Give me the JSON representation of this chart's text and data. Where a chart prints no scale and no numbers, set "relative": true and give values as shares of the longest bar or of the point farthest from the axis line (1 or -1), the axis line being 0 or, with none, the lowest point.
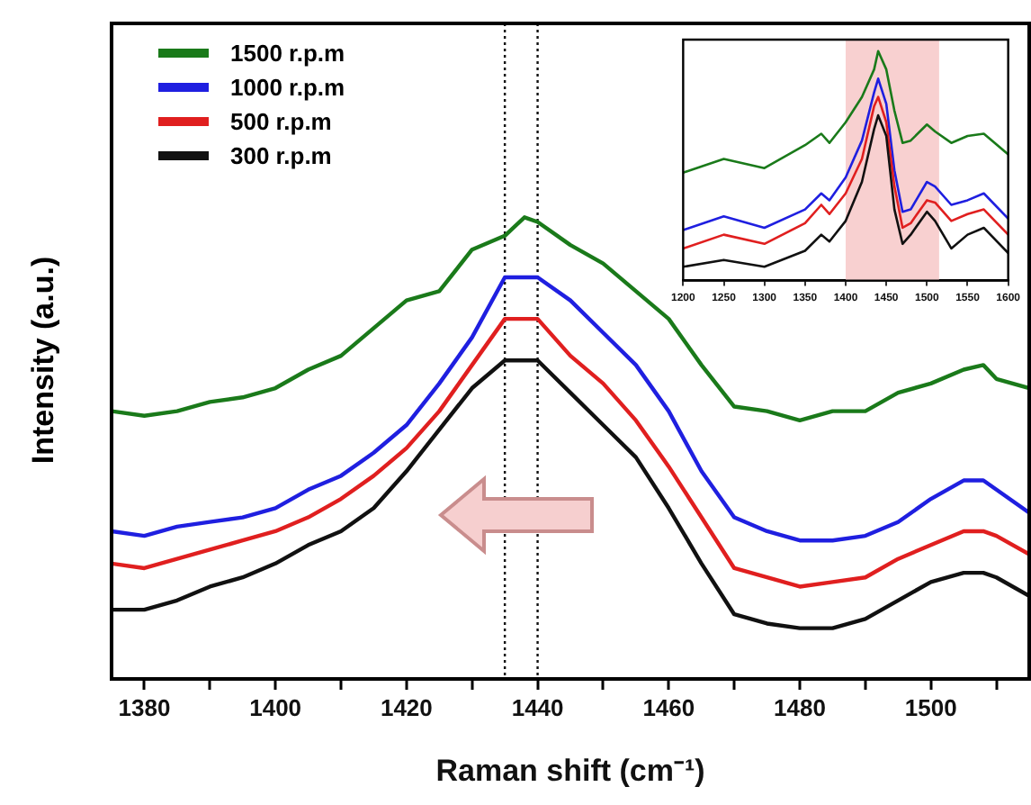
{
  "chart_data": [
    {
      "type": "line",
      "xlabel": "Raman shift (cm⁻¹)",
      "ylabel": "Intensity (a.u.)",
      "relative": true,
      "xlim": [
        1375,
        1515
      ],
      "xticks": [
        1380,
        {
          "value": 1390,
          "label": null
        },
        1400,
        {
          "value": 1410,
          "label": null
        },
        1420,
        {
          "value": 1430,
          "label": null
        },
        1440,
        {
          "value": 1450,
          "label": null
        },
        1460,
        {
          "value": 1470,
          "label": null
        },
        1480,
        {
          "value": 1490,
          "label": null
        },
        1500,
        {
          "value": 1510,
          "label": null
        }
      ],
      "x": [
        1375,
        1380,
        1385,
        1390,
        1395,
        1400,
        1405,
        1410,
        1415,
        1420,
        1425,
        1430,
        1435,
        1438,
        1440,
        1445,
        1450,
        1455,
        1460,
        1465,
        1470,
        1475,
        1480,
        1485,
        1490,
        1495,
        1500,
        1505,
        1508,
        1510,
        1515
      ],
      "series": [
        {
          "name": "1500 r.p.m",
          "color": "#1a7a1a",
          "values": [
            0.58,
            0.57,
            0.58,
            0.6,
            0.61,
            0.63,
            0.67,
            0.7,
            0.76,
            0.82,
            0.84,
            0.93,
            0.96,
            1.0,
            0.99,
            0.94,
            0.9,
            0.84,
            0.78,
            0.68,
            0.59,
            0.58,
            0.56,
            0.58,
            0.58,
            0.62,
            0.64,
            0.67,
            0.68,
            0.65,
            0.63
          ]
        },
        {
          "name": "1000 r.p.m",
          "color": "#1f1fe0",
          "values": [
            0.32,
            0.31,
            0.33,
            0.34,
            0.35,
            0.37,
            0.41,
            0.44,
            0.49,
            0.55,
            0.64,
            0.74,
            0.87,
            0.87,
            0.87,
            0.82,
            0.75,
            0.68,
            0.58,
            0.45,
            0.35,
            0.32,
            0.3,
            0.3,
            0.31,
            0.34,
            0.39,
            0.43,
            0.43,
            0.41,
            0.36
          ]
        },
        {
          "name": "500 r.p.m",
          "color": "#e01f1f",
          "values": [
            0.25,
            0.24,
            0.26,
            0.28,
            0.3,
            0.32,
            0.35,
            0.39,
            0.44,
            0.5,
            0.58,
            0.68,
            0.78,
            0.78,
            0.78,
            0.7,
            0.64,
            0.56,
            0.46,
            0.35,
            0.24,
            0.22,
            0.2,
            0.21,
            0.22,
            0.26,
            0.29,
            0.32,
            0.32,
            0.31,
            0.27
          ]
        },
        {
          "name": "300 r.p.m",
          "color": "#111111",
          "values": [
            0.15,
            0.15,
            0.17,
            0.2,
            0.22,
            0.25,
            0.29,
            0.32,
            0.37,
            0.45,
            0.54,
            0.63,
            0.69,
            0.69,
            0.69,
            0.62,
            0.55,
            0.48,
            0.37,
            0.25,
            0.14,
            0.12,
            0.11,
            0.11,
            0.13,
            0.17,
            0.21,
            0.23,
            0.23,
            0.22,
            0.18
          ]
        }
      ],
      "ref_lines": [
        {
          "axis": "x",
          "value": 1435,
          "color": "#111111",
          "line_style": "dotted"
        },
        {
          "axis": "x",
          "value": 1440,
          "color": "#111111",
          "line_style": "dotted"
        }
      ],
      "legend": "top left",
      "grid": false,
      "marker": "none"
    },
    {
      "type": "line",
      "relative": true,
      "xlim": [
        1200,
        1600
      ],
      "xticks": [
        1200,
        1250,
        1300,
        1350,
        1400,
        1450,
        1500,
        1550,
        1600
      ],
      "tick_labels": "x",
      "x": [
        1200,
        1250,
        1300,
        1350,
        1370,
        1380,
        1400,
        1420,
        1435,
        1440,
        1450,
        1460,
        1470,
        1480,
        1500,
        1510,
        1530,
        1550,
        1570,
        1600
      ],
      "series": [
        {
          "color": "#1a7a1a",
          "values": [
            0.47,
            0.53,
            0.49,
            0.59,
            0.64,
            0.6,
            0.69,
            0.8,
            0.92,
            1.0,
            0.92,
            0.74,
            0.6,
            0.61,
            0.68,
            0.65,
            0.6,
            0.63,
            0.64,
            0.55
          ]
        },
        {
          "color": "#1f1fe0",
          "values": [
            0.22,
            0.28,
            0.23,
            0.31,
            0.38,
            0.35,
            0.45,
            0.61,
            0.82,
            0.88,
            0.77,
            0.48,
            0.3,
            0.31,
            0.43,
            0.41,
            0.33,
            0.35,
            0.38,
            0.27
          ]
        },
        {
          "color": "#e01f1f",
          "values": [
            0.14,
            0.2,
            0.16,
            0.25,
            0.33,
            0.29,
            0.38,
            0.53,
            0.76,
            0.8,
            0.69,
            0.41,
            0.23,
            0.25,
            0.35,
            0.34,
            0.26,
            0.29,
            0.31,
            0.2
          ]
        },
        {
          "color": "#111111",
          "values": [
            0.06,
            0.09,
            0.06,
            0.13,
            0.2,
            0.17,
            0.26,
            0.43,
            0.66,
            0.72,
            0.63,
            0.31,
            0.16,
            0.2,
            0.3,
            0.26,
            0.14,
            0.2,
            0.23,
            0.12
          ]
        }
      ],
      "bands": [
        {
          "axis": "x",
          "from": 1400,
          "to": 1515,
          "color": "#f8d0d0"
        }
      ],
      "grid": false,
      "marker": "none"
    }
  ]
}
